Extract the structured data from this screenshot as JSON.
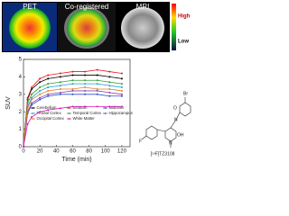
{
  "panels": [
    "PET",
    "Co-registered",
    "MRI"
  ],
  "colorbar": {
    "high": "High",
    "low": "Low"
  },
  "chart_data": {
    "type": "line",
    "xlabel": "Time (min)",
    "ylabel": "SUV",
    "x": [
      0,
      5,
      10,
      20,
      30,
      45,
      60,
      75,
      90,
      105,
      120
    ],
    "xlim": [
      0,
      130
    ],
    "xticks": [
      0,
      20,
      40,
      60,
      80,
      100,
      120
    ],
    "ylim": [
      0,
      5
    ],
    "yticks": [
      0,
      1,
      2,
      3,
      4,
      5
    ],
    "series": [
      {
        "name": "Cerebellum",
        "color": "#000000",
        "values": [
          0,
          2.7,
          3.3,
          3.7,
          3.9,
          4.0,
          4.1,
          4.1,
          4.1,
          4.0,
          3.9
        ]
      },
      {
        "name": "Striatum",
        "color": "#e41a1c",
        "values": [
          0,
          2.8,
          3.4,
          3.9,
          4.1,
          4.2,
          4.3,
          4.3,
          4.4,
          4.3,
          4.2
        ]
      },
      {
        "name": "Midbrain",
        "color": "#2b4fc9",
        "values": [
          0,
          1.9,
          2.4,
          2.7,
          2.9,
          3.0,
          3.0,
          3.0,
          3.0,
          2.9,
          2.9
        ]
      },
      {
        "name": "Frontal Cortex",
        "color": "#1f9fd8",
        "values": [
          0,
          2.3,
          2.8,
          3.2,
          3.4,
          3.5,
          3.6,
          3.6,
          3.6,
          3.5,
          3.4
        ]
      },
      {
        "name": "Temporal Cortex",
        "color": "#2ca02c",
        "values": [
          0,
          2.5,
          3.0,
          3.4,
          3.6,
          3.7,
          3.8,
          3.8,
          3.8,
          3.7,
          3.6
        ]
      },
      {
        "name": "Hippocampus",
        "color": "#8e44ad",
        "values": [
          0,
          2.0,
          2.5,
          2.8,
          3.0,
          3.1,
          3.2,
          3.2,
          3.2,
          3.1,
          3.0
        ]
      },
      {
        "name": "Occipital Cortex",
        "color": "#e67e22",
        "values": [
          0,
          2.2,
          2.7,
          3.0,
          3.2,
          3.3,
          3.3,
          3.4,
          3.3,
          3.3,
          3.2
        ]
      },
      {
        "name": "White Matter",
        "color": "#d61ab8",
        "values": [
          0,
          1.3,
          1.7,
          2.0,
          2.1,
          2.2,
          2.3,
          2.3,
          2.3,
          2.3,
          2.3
        ]
      }
    ]
  },
  "structure": {
    "atoms": [
      "F",
      "N",
      "N",
      "OH",
      "O",
      "Br"
    ],
    "label": "[¹⁸F]TZ3108"
  }
}
